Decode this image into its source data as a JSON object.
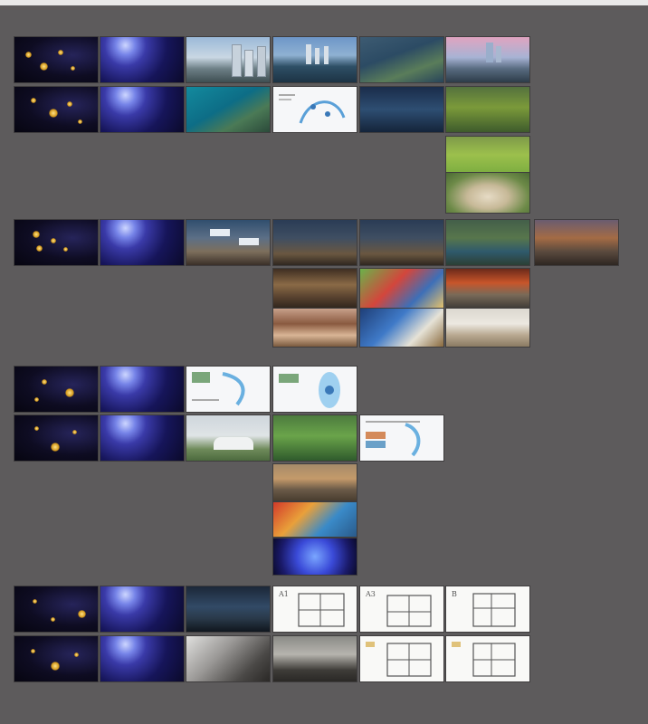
{
  "canvas": {
    "background": "#5d5b5c",
    "frame_border": "#3f3d3e"
  },
  "slides": [
    {
      "id": "s1-1",
      "kind": "stars",
      "label": ""
    },
    {
      "id": "s1-2",
      "kind": "planet",
      "label": ""
    },
    {
      "id": "s1-3",
      "kind": "city",
      "label": ""
    },
    {
      "id": "s1-4",
      "kind": "lake",
      "label": ""
    },
    {
      "id": "s1-5",
      "kind": "aerial",
      "label": ""
    },
    {
      "id": "s1-6",
      "kind": "dusk",
      "label": ""
    },
    {
      "id": "s2-1",
      "kind": "stars",
      "label": ""
    },
    {
      "id": "s2-2",
      "kind": "planet",
      "label": ""
    },
    {
      "id": "s2-3",
      "kind": "sea",
      "label": ""
    },
    {
      "id": "s2-4",
      "kind": "map",
      "label": ""
    },
    {
      "id": "s2-5",
      "kind": "night",
      "label": ""
    },
    {
      "id": "s2-6",
      "kind": "green",
      "label": ""
    },
    {
      "id": "s2-7",
      "kind": "grass",
      "label": ""
    },
    {
      "id": "s2-8",
      "kind": "sand",
      "label": ""
    },
    {
      "id": "s3-1",
      "kind": "stars",
      "label": ""
    },
    {
      "id": "s3-2",
      "kind": "planet",
      "label": ""
    },
    {
      "id": "s3-3",
      "kind": "mall",
      "label": ""
    },
    {
      "id": "s3-4",
      "kind": "street",
      "label": ""
    },
    {
      "id": "s3-5",
      "kind": "street",
      "label": ""
    },
    {
      "id": "s3-6",
      "kind": "park",
      "label": ""
    },
    {
      "id": "s3-7",
      "kind": "sunset",
      "label": ""
    },
    {
      "id": "s3-8",
      "kind": "hall",
      "label": ""
    },
    {
      "id": "s3-9",
      "kind": "kids",
      "label": ""
    },
    {
      "id": "s3-10",
      "kind": "store",
      "label": ""
    },
    {
      "id": "s3-11",
      "kind": "spa",
      "label": ""
    },
    {
      "id": "s3-12",
      "kind": "dine",
      "label": ""
    },
    {
      "id": "s3-13",
      "kind": "fit",
      "label": ""
    },
    {
      "id": "s4-1",
      "kind": "stars",
      "label": ""
    },
    {
      "id": "s4-2",
      "kind": "planet",
      "label": ""
    },
    {
      "id": "s4-3",
      "kind": "map",
      "label": ""
    },
    {
      "id": "s4-4",
      "kind": "map",
      "label": ""
    },
    {
      "id": "s4-5",
      "kind": "stars",
      "label": ""
    },
    {
      "id": "s4-6",
      "kind": "planet",
      "label": ""
    },
    {
      "id": "s4-7",
      "kind": "club",
      "label": ""
    },
    {
      "id": "s4-8",
      "kind": "sport",
      "label": ""
    },
    {
      "id": "s4-9",
      "kind": "map",
      "label": ""
    },
    {
      "id": "s4-10",
      "kind": "crowd",
      "label": ""
    },
    {
      "id": "s4-11",
      "kind": "boat",
      "label": ""
    },
    {
      "id": "s4-12",
      "kind": "glow",
      "label": ""
    },
    {
      "id": "s5-1",
      "kind": "stars",
      "label": ""
    },
    {
      "id": "s5-2",
      "kind": "planet",
      "label": ""
    },
    {
      "id": "s5-3",
      "kind": "glass",
      "label": ""
    },
    {
      "id": "s5-4",
      "kind": "plan",
      "label": "A1"
    },
    {
      "id": "s5-5",
      "kind": "plan",
      "label": "A3"
    },
    {
      "id": "s5-6",
      "kind": "plan",
      "label": "B"
    },
    {
      "id": "s5-7",
      "kind": "stars",
      "label": ""
    },
    {
      "id": "s5-8",
      "kind": "planet",
      "label": ""
    },
    {
      "id": "s5-9",
      "kind": "stair",
      "label": ""
    },
    {
      "id": "s5-10",
      "kind": "room",
      "label": ""
    },
    {
      "id": "s5-11",
      "kind": "plan",
      "label": ""
    },
    {
      "id": "s5-12",
      "kind": "plan",
      "label": ""
    }
  ]
}
